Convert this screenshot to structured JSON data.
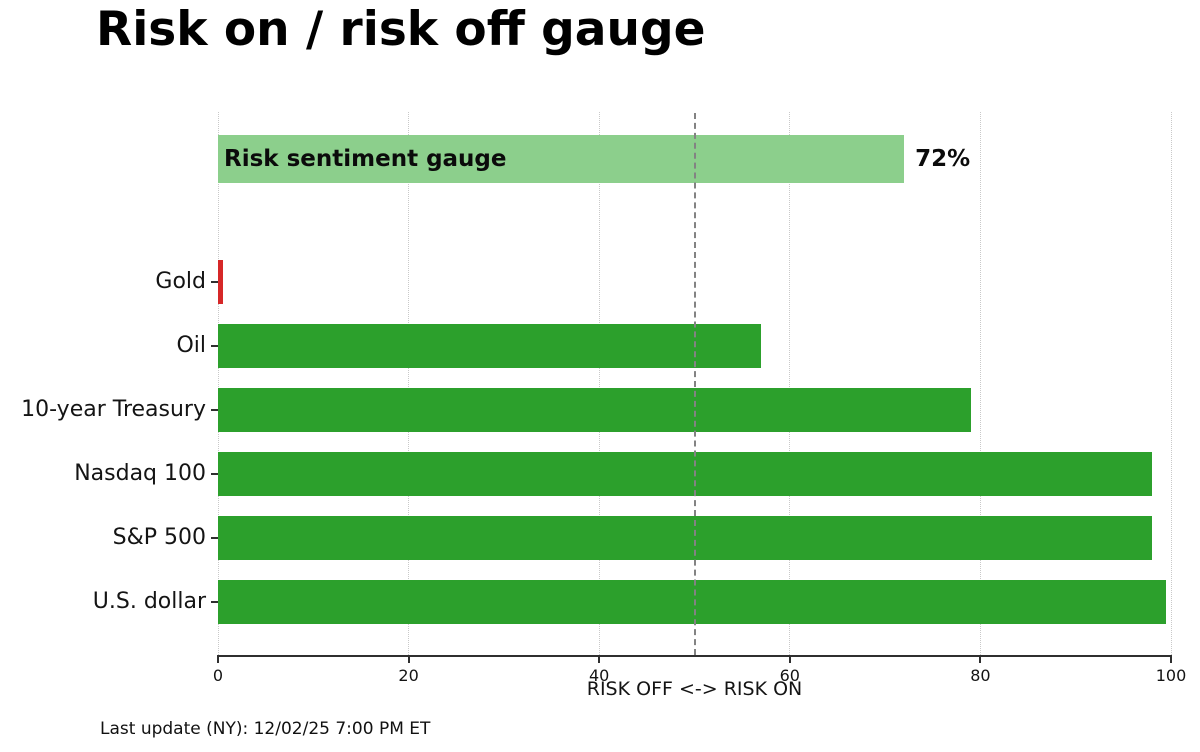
{
  "header": {
    "title": "Risk on / risk off gauge"
  },
  "footer": {
    "text": "Last update (NY): 12/02/25 7:00 PM ET"
  },
  "chart_data": {
    "type": "bar",
    "orientation": "horizontal",
    "title": "Risk on / risk off gauge",
    "xlabel": "RISK OFF <-> RISK ON",
    "xlim": [
      0,
      100
    ],
    "xticks": [
      0,
      20,
      40,
      60,
      80,
      100
    ],
    "grid": {
      "vertical": true,
      "style": "dotted",
      "color": "#c9c9c9"
    },
    "reference_line": {
      "x": 50,
      "style": "dashed",
      "color": "#838383"
    },
    "gauge_bar": {
      "label": "Risk sentiment gauge",
      "value": 72,
      "value_label": "72%",
      "color": "#8ccf8c"
    },
    "categories": [
      "Gold",
      "Oil",
      "10-year Treasury",
      "Nasdaq 100",
      "S&P 500",
      "U.S. dollar"
    ],
    "values": [
      0.5,
      57,
      79,
      98,
      98,
      99.5
    ],
    "bar_colors": [
      "#d62728",
      "#2ca02c",
      "#2ca02c",
      "#2ca02c",
      "#2ca02c",
      "#2ca02c"
    ],
    "colors": {
      "risk_on_green": "#2ca02c",
      "risk_off_red": "#d62728",
      "gauge_light_green": "#8ccf8c",
      "axis": "#2f2f2f"
    }
  }
}
